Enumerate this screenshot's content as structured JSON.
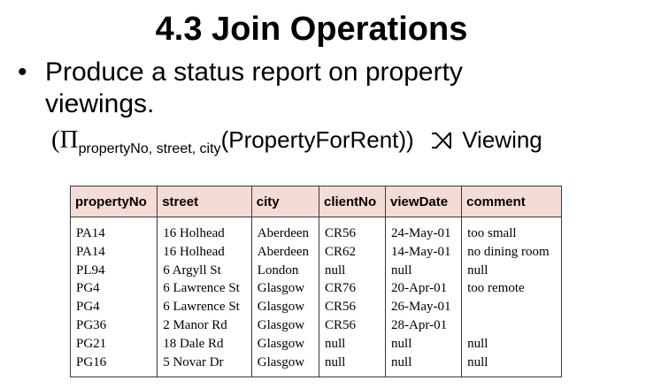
{
  "title": "4.3 Join Operations",
  "bullet": "Produce a status report on property viewings.",
  "expression": {
    "pi": "(Π",
    "subscript": "propertyNo, street, city",
    "relation": "(PropertyForRent))",
    "join_icon": "left-outer-join-icon",
    "right_relation": "Viewing"
  },
  "table": {
    "columns": [
      "propertyNo",
      "street",
      "city",
      "clientNo",
      "viewDate",
      "comment"
    ],
    "rows": [
      [
        "PA14",
        "16 Holhead",
        "Aberdeen",
        "CR56",
        "24-May-01",
        "too small"
      ],
      [
        "PA14",
        "16 Holhead",
        "Aberdeen",
        "CR62",
        "14-May-01",
        "no dining room"
      ],
      [
        "PL94",
        "6 Argyll St",
        "London",
        "null",
        "null",
        "null"
      ],
      [
        "PG4",
        "6 Lawrence St",
        "Glasgow",
        "CR76",
        "20-Apr-01",
        "too remote"
      ],
      [
        "PG4",
        "6 Lawrence St",
        "Glasgow",
        "CR56",
        "26-May-01",
        ""
      ],
      [
        "PG36",
        "2 Manor Rd",
        "Glasgow",
        "CR56",
        "28-Apr-01",
        ""
      ],
      [
        "PG21",
        "18 Dale Rd",
        "Glasgow",
        "null",
        "null",
        "null"
      ],
      [
        "PG16",
        "5 Novar Dr",
        "Glasgow",
        "null",
        "null",
        "null"
      ]
    ]
  },
  "colors": {
    "header_background": "#f4dcd6",
    "border": "#3a3a3a"
  }
}
